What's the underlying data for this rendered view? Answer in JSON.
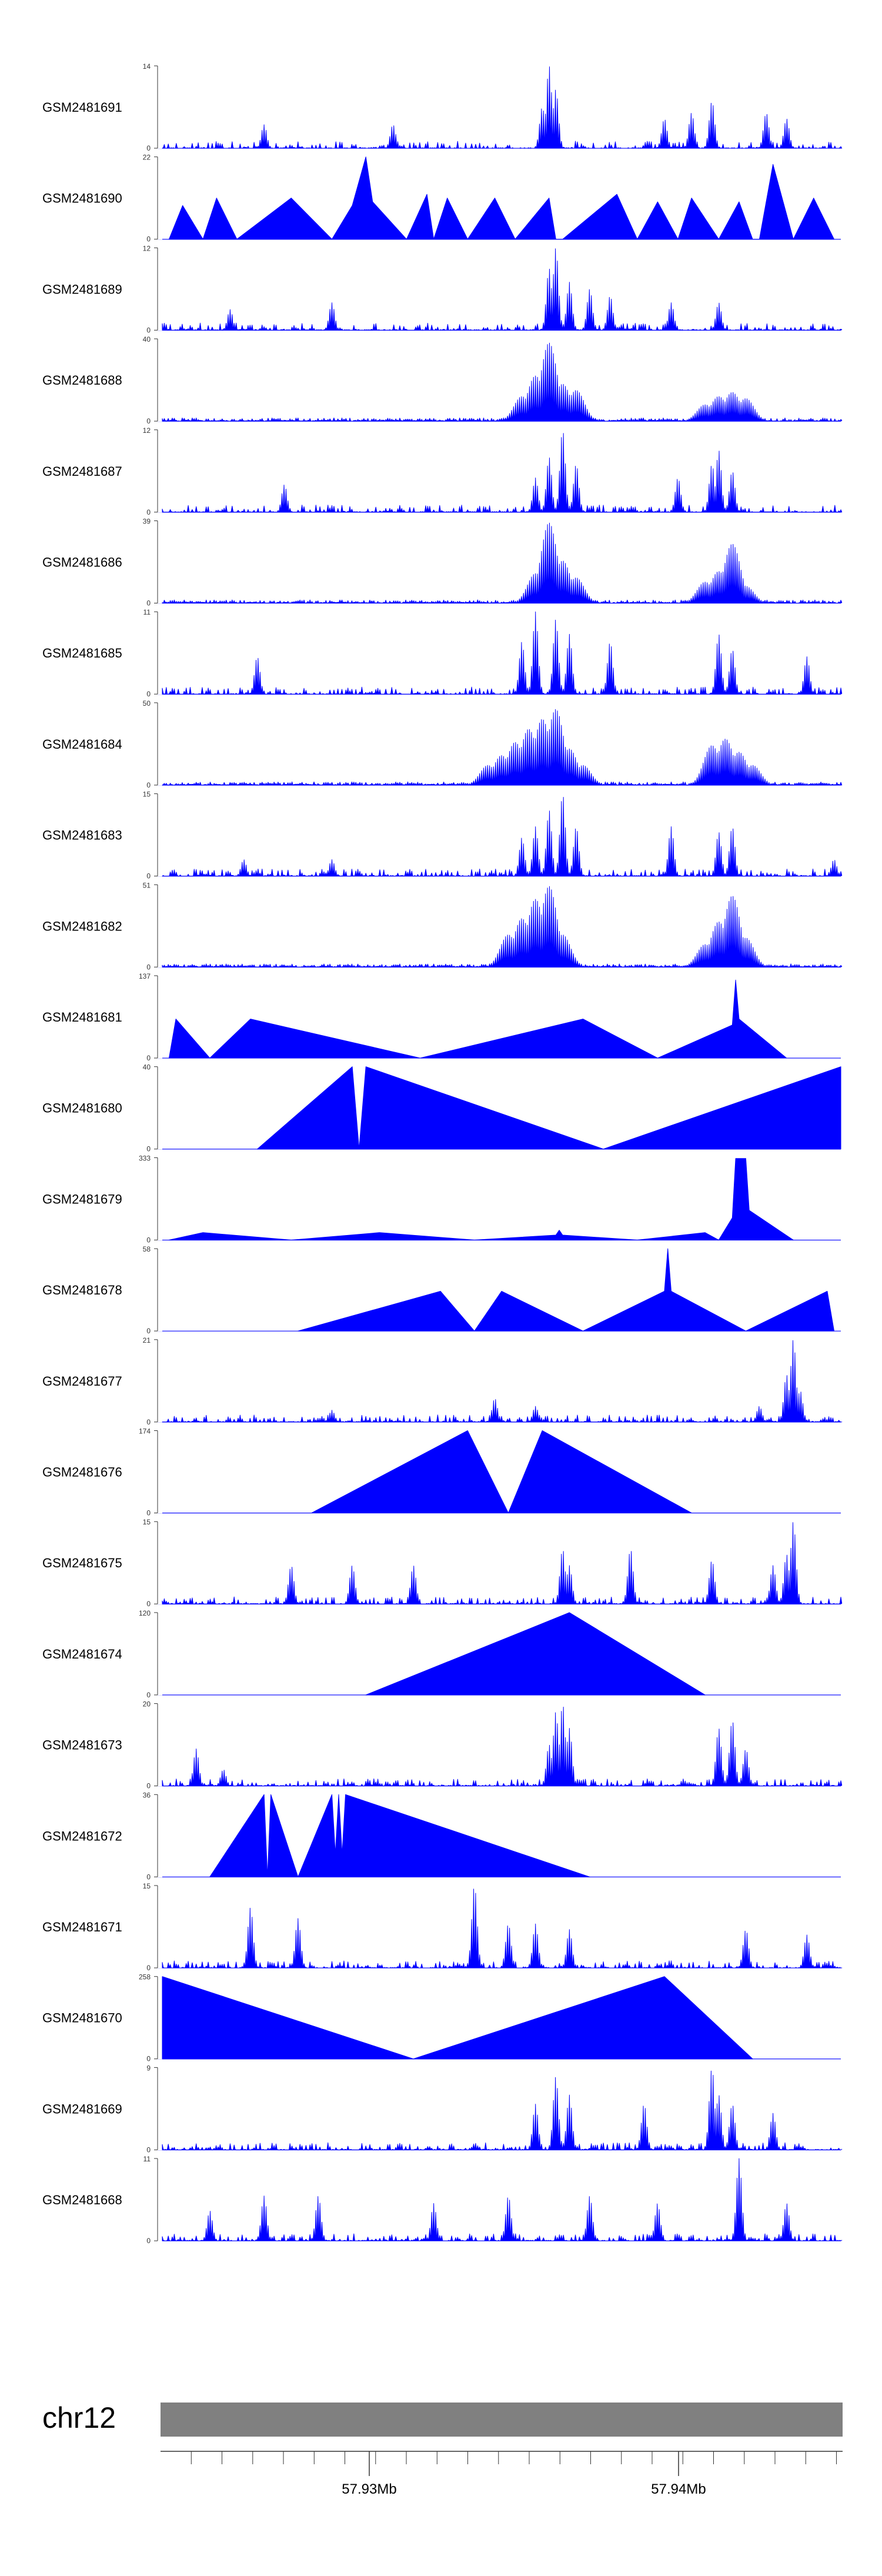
{
  "figure": {
    "type": "genome-coverage-tracks"
  },
  "axis": {
    "chromosome": "chr12",
    "ticks": [
      "57.93Mb",
      "57.94Mb"
    ],
    "tick_values_mb": [
      57.93,
      57.94
    ],
    "range_mb": [
      57.923,
      57.9452
    ]
  },
  "colors": {
    "signal": "#0000ff",
    "track_separator": "#7a7aff",
    "ideogram": "#808080",
    "axis": "#333333",
    "text": "#000000"
  },
  "chart_data": {
    "type": "area",
    "title": "",
    "xlabel": "chr12",
    "ylabel": "",
    "tracks": [
      {
        "name": "GSM2481691",
        "ymax": 14,
        "ymin": 0,
        "style": "dense",
        "peaks": [
          [
            0.57,
            14
          ],
          [
            0.58,
            10
          ],
          [
            0.56,
            7
          ],
          [
            0.81,
            8
          ],
          [
            0.78,
            6
          ],
          [
            0.74,
            5
          ],
          [
            0.89,
            6
          ],
          [
            0.92,
            5
          ],
          [
            0.15,
            4
          ],
          [
            0.34,
            4
          ]
        ]
      },
      {
        "name": "GSM2481690",
        "ymax": 22,
        "ymin": 0,
        "style": "sparse",
        "points": [
          [
            0.01,
            0
          ],
          [
            0.03,
            9
          ],
          [
            0.06,
            0
          ],
          [
            0.08,
            11
          ],
          [
            0.11,
            0
          ],
          [
            0.19,
            11
          ],
          [
            0.25,
            0
          ],
          [
            0.28,
            9
          ],
          [
            0.3,
            22
          ],
          [
            0.31,
            10
          ],
          [
            0.36,
            0
          ],
          [
            0.39,
            12
          ],
          [
            0.4,
            0
          ],
          [
            0.42,
            11
          ],
          [
            0.45,
            0
          ],
          [
            0.49,
            11
          ],
          [
            0.52,
            0
          ],
          [
            0.57,
            11
          ],
          [
            0.58,
            0
          ],
          [
            0.59,
            0
          ],
          [
            0.67,
            12
          ],
          [
            0.7,
            0
          ],
          [
            0.73,
            10
          ],
          [
            0.76,
            0
          ],
          [
            0.78,
            11
          ],
          [
            0.82,
            0
          ],
          [
            0.85,
            10
          ],
          [
            0.87,
            0
          ],
          [
            0.88,
            0
          ],
          [
            0.9,
            20
          ],
          [
            0.93,
            0
          ],
          [
            0.96,
            11
          ],
          [
            0.99,
            0
          ]
        ]
      },
      {
        "name": "GSM2481689",
        "ymax": 12,
        "ymin": 0,
        "style": "dense",
        "peaks": [
          [
            0.58,
            12
          ],
          [
            0.57,
            9
          ],
          [
            0.6,
            7
          ],
          [
            0.63,
            6
          ],
          [
            0.66,
            5
          ],
          [
            0.25,
            4
          ],
          [
            0.82,
            4
          ],
          [
            0.75,
            4
          ],
          [
            0.1,
            3
          ]
        ]
      },
      {
        "name": "GSM2481688",
        "ymax": 40,
        "ymin": 0,
        "style": "cluster",
        "peaks": [
          [
            0.57,
            38
          ],
          [
            0.55,
            22
          ],
          [
            0.59,
            18
          ],
          [
            0.61,
            15
          ],
          [
            0.53,
            12
          ],
          [
            0.82,
            12
          ],
          [
            0.84,
            14
          ],
          [
            0.86,
            11
          ],
          [
            0.8,
            8
          ]
        ]
      },
      {
        "name": "GSM2481687",
        "ymax": 12,
        "ymin": 0,
        "style": "dense",
        "peaks": [
          [
            0.59,
            12
          ],
          [
            0.57,
            8
          ],
          [
            0.61,
            7
          ],
          [
            0.81,
            7
          ],
          [
            0.82,
            9
          ],
          [
            0.84,
            6
          ],
          [
            0.55,
            5
          ],
          [
            0.18,
            4
          ],
          [
            0.76,
            5
          ]
        ]
      },
      {
        "name": "GSM2481686",
        "ymax": 39,
        "ymin": 0,
        "style": "cluster",
        "peaks": [
          [
            0.57,
            38
          ],
          [
            0.59,
            20
          ],
          [
            0.55,
            14
          ],
          [
            0.61,
            12
          ],
          [
            0.84,
            28
          ],
          [
            0.82,
            15
          ],
          [
            0.8,
            10
          ],
          [
            0.86,
            8
          ]
        ]
      },
      {
        "name": "GSM2481685",
        "ymax": 11,
        "ymin": 0,
        "style": "dense",
        "peaks": [
          [
            0.55,
            11
          ],
          [
            0.58,
            10
          ],
          [
            0.6,
            8
          ],
          [
            0.53,
            7
          ],
          [
            0.66,
            7
          ],
          [
            0.82,
            8
          ],
          [
            0.84,
            6
          ],
          [
            0.14,
            5
          ],
          [
            0.95,
            5
          ]
        ]
      },
      {
        "name": "GSM2481684",
        "ymax": 50,
        "ymin": 0,
        "style": "cluster",
        "peaks": [
          [
            0.58,
            46
          ],
          [
            0.56,
            40
          ],
          [
            0.54,
            34
          ],
          [
            0.52,
            26
          ],
          [
            0.5,
            18
          ],
          [
            0.48,
            12
          ],
          [
            0.6,
            22
          ],
          [
            0.62,
            12
          ],
          [
            0.81,
            24
          ],
          [
            0.83,
            28
          ],
          [
            0.85,
            20
          ],
          [
            0.87,
            12
          ]
        ]
      },
      {
        "name": "GSM2481683",
        "ymax": 15,
        "ymin": 0,
        "style": "dense",
        "peaks": [
          [
            0.59,
            15
          ],
          [
            0.57,
            12
          ],
          [
            0.55,
            9
          ],
          [
            0.61,
            9
          ],
          [
            0.53,
            7
          ],
          [
            0.75,
            9
          ],
          [
            0.82,
            8
          ],
          [
            0.84,
            9
          ],
          [
            0.12,
            3
          ],
          [
            0.25,
            3
          ],
          [
            0.99,
            3
          ]
        ]
      },
      {
        "name": "GSM2481682",
        "ymax": 51,
        "ymin": 0,
        "style": "cluster",
        "peaks": [
          [
            0.57,
            50
          ],
          [
            0.55,
            42
          ],
          [
            0.53,
            30
          ],
          [
            0.51,
            20
          ],
          [
            0.59,
            20
          ],
          [
            0.84,
            44
          ],
          [
            0.82,
            28
          ],
          [
            0.86,
            18
          ],
          [
            0.8,
            14
          ]
        ]
      },
      {
        "name": "GSM2481681",
        "ymax": 137,
        "ymin": 0,
        "style": "sparse",
        "points": [
          [
            0.01,
            0
          ],
          [
            0.02,
            65
          ],
          [
            0.07,
            0
          ],
          [
            0.13,
            65
          ],
          [
            0.38,
            0
          ],
          [
            0.62,
            65
          ],
          [
            0.73,
            0
          ],
          [
            0.84,
            55
          ],
          [
            0.845,
            130
          ],
          [
            0.85,
            65
          ],
          [
            0.92,
            0
          ]
        ]
      },
      {
        "name": "GSM2481680",
        "ymax": 40,
        "ymin": 0,
        "style": "sparse",
        "points": [
          [
            0.14,
            0
          ],
          [
            0.28,
            40
          ],
          [
            0.29,
            0
          ],
          [
            0.3,
            40
          ],
          [
            0.65,
            0
          ],
          [
            1.0,
            40
          ],
          [
            1.0,
            0
          ]
        ]
      },
      {
        "name": "GSM2481679",
        "ymax": 333,
        "ymin": 0,
        "style": "sparse",
        "points": [
          [
            0.01,
            0
          ],
          [
            0.06,
            30
          ],
          [
            0.19,
            0
          ],
          [
            0.32,
            30
          ],
          [
            0.46,
            0
          ],
          [
            0.58,
            20
          ],
          [
            0.585,
            40
          ],
          [
            0.59,
            20
          ],
          [
            0.7,
            0
          ],
          [
            0.8,
            30
          ],
          [
            0.82,
            0
          ],
          [
            0.84,
            90
          ],
          [
            0.845,
            330
          ],
          [
            0.86,
            330
          ],
          [
            0.865,
            120
          ],
          [
            0.93,
            0
          ]
        ]
      },
      {
        "name": "GSM2481678",
        "ymax": 58,
        "ymin": 0,
        "style": "sparse",
        "points": [
          [
            0.2,
            0
          ],
          [
            0.41,
            28
          ],
          [
            0.46,
            0
          ],
          [
            0.5,
            28
          ],
          [
            0.62,
            0
          ],
          [
            0.74,
            28
          ],
          [
            0.745,
            58
          ],
          [
            0.75,
            28
          ],
          [
            0.86,
            0
          ],
          [
            0.98,
            28
          ],
          [
            0.99,
            0
          ]
        ]
      },
      {
        "name": "GSM2481677",
        "ymax": 21,
        "ymin": 0,
        "style": "dense",
        "peaks": [
          [
            0.93,
            21
          ],
          [
            0.92,
            12
          ],
          [
            0.94,
            8
          ],
          [
            0.49,
            6
          ],
          [
            0.55,
            4
          ],
          [
            0.88,
            4
          ],
          [
            0.25,
            3
          ]
        ]
      },
      {
        "name": "GSM2481676",
        "ymax": 174,
        "ymin": 0,
        "style": "sparse",
        "points": [
          [
            0.22,
            0
          ],
          [
            0.45,
            174
          ],
          [
            0.51,
            0
          ],
          [
            0.56,
            174
          ],
          [
            0.78,
            0
          ]
        ]
      },
      {
        "name": "GSM2481675",
        "ymax": 15,
        "ymin": 0,
        "style": "dense",
        "peaks": [
          [
            0.93,
            15
          ],
          [
            0.59,
            10
          ],
          [
            0.69,
            10
          ],
          [
            0.92,
            9
          ],
          [
            0.9,
            7
          ],
          [
            0.81,
            8
          ],
          [
            0.37,
            7
          ],
          [
            0.19,
            7
          ],
          [
            0.28,
            7
          ],
          [
            0.6,
            7
          ]
        ]
      },
      {
        "name": "GSM2481674",
        "ymax": 120,
        "ymin": 0,
        "style": "sparse",
        "points": [
          [
            0.3,
            0
          ],
          [
            0.6,
            120
          ],
          [
            0.8,
            0
          ]
        ]
      },
      {
        "name": "GSM2481673",
        "ymax": 20,
        "ymin": 0,
        "style": "dense",
        "peaks": [
          [
            0.59,
            20
          ],
          [
            0.58,
            18
          ],
          [
            0.6,
            14
          ],
          [
            0.57,
            10
          ],
          [
            0.84,
            16
          ],
          [
            0.82,
            14
          ],
          [
            0.86,
            9
          ],
          [
            0.05,
            9
          ],
          [
            0.09,
            4
          ]
        ]
      },
      {
        "name": "GSM2481672",
        "ymax": 36,
        "ymin": 0,
        "style": "sparse",
        "points": [
          [
            0.07,
            0
          ],
          [
            0.15,
            36
          ],
          [
            0.155,
            0
          ],
          [
            0.16,
            36
          ],
          [
            0.2,
            0
          ],
          [
            0.25,
            36
          ],
          [
            0.255,
            10
          ],
          [
            0.26,
            36
          ],
          [
            0.265,
            10
          ],
          [
            0.27,
            36
          ],
          [
            0.63,
            0
          ]
        ]
      },
      {
        "name": "GSM2481671",
        "ymax": 15,
        "ymin": 0,
        "style": "dense",
        "peaks": [
          [
            0.46,
            15
          ],
          [
            0.13,
            11
          ],
          [
            0.2,
            9
          ],
          [
            0.51,
            8
          ],
          [
            0.55,
            8
          ],
          [
            0.86,
            7
          ],
          [
            0.6,
            7
          ],
          [
            0.95,
            6
          ]
        ]
      },
      {
        "name": "GSM2481670",
        "ymax": 258,
        "ymin": 0,
        "style": "sparse",
        "points": [
          [
            0.0,
            0
          ],
          [
            0.0,
            258
          ],
          [
            0.37,
            0
          ],
          [
            0.74,
            258
          ],
          [
            0.87,
            0
          ]
        ]
      },
      {
        "name": "GSM2481669",
        "ymax": 9,
        "ymin": 0,
        "style": "dense",
        "peaks": [
          [
            0.81,
            9
          ],
          [
            0.58,
            8
          ],
          [
            0.6,
            6
          ],
          [
            0.82,
            6
          ],
          [
            0.71,
            5
          ],
          [
            0.84,
            5
          ],
          [
            0.55,
            5
          ],
          [
            0.9,
            4
          ]
        ]
      },
      {
        "name": "GSM2481668",
        "ymax": 11,
        "ymin": 0,
        "style": "dense",
        "peaks": [
          [
            0.85,
            11
          ],
          [
            0.15,
            6
          ],
          [
            0.23,
            6
          ],
          [
            0.51,
            6
          ],
          [
            0.63,
            6
          ],
          [
            0.92,
            5
          ],
          [
            0.4,
            5
          ],
          [
            0.73,
            5
          ],
          [
            0.07,
            4
          ]
        ]
      }
    ]
  }
}
